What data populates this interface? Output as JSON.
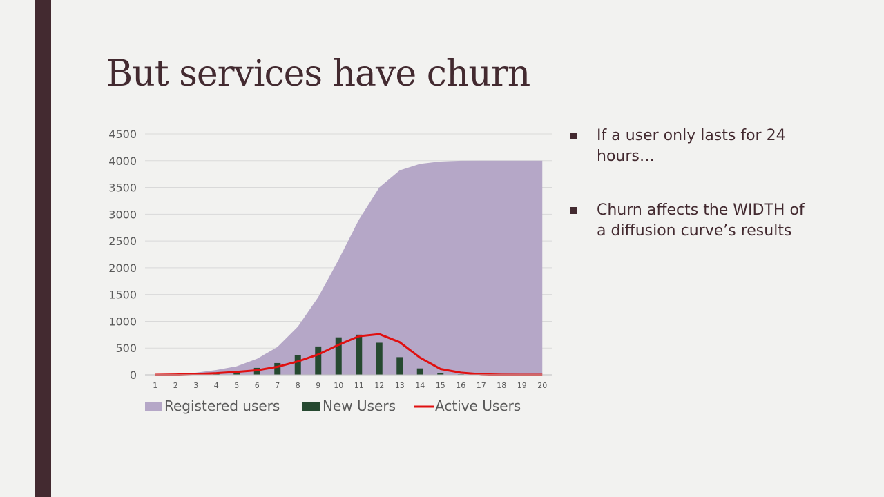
{
  "colors": {
    "accent_bar": "#432a30",
    "title_text": "#432a30",
    "body_text": "#432a30",
    "registered_fill": "#b5a7c7",
    "new_users_bar": "#264930",
    "active_line": "#e01010",
    "grid": "#d9d9d9",
    "axis_text": "#595959"
  },
  "slide": {
    "title": "But services have churn",
    "bullets": [
      "If a user only lasts for 24 hours…",
      "Churn affects the WIDTH of a diffusion curve’s results"
    ]
  },
  "chart_data": {
    "type": "area",
    "x": [
      1,
      2,
      3,
      4,
      5,
      6,
      7,
      8,
      9,
      10,
      11,
      12,
      13,
      14,
      15,
      16,
      17,
      18,
      19,
      20
    ],
    "ylim": [
      0,
      4500
    ],
    "yticks": [
      0,
      500,
      1000,
      1500,
      2000,
      2500,
      3000,
      3500,
      4000,
      4500
    ],
    "grid": true,
    "legend_position": "bottom",
    "series": [
      {
        "name": "Registered users",
        "kind": "area",
        "values": [
          0,
          10,
          40,
          90,
          160,
          300,
          520,
          900,
          1450,
          2150,
          2900,
          3500,
          3820,
          3940,
          3985,
          3998,
          4000,
          4000,
          4000,
          4000
        ]
      },
      {
        "name": "New Users",
        "kind": "bar",
        "values": [
          0,
          5,
          10,
          25,
          70,
          130,
          220,
          370,
          530,
          700,
          750,
          600,
          330,
          120,
          30,
          10,
          2,
          1,
          0,
          0
        ]
      },
      {
        "name": "Active Users",
        "kind": "line",
        "values": [
          0,
          5,
          15,
          30,
          55,
          85,
          150,
          250,
          380,
          560,
          720,
          760,
          610,
          320,
          110,
          40,
          10,
          2,
          0,
          0
        ]
      }
    ]
  }
}
